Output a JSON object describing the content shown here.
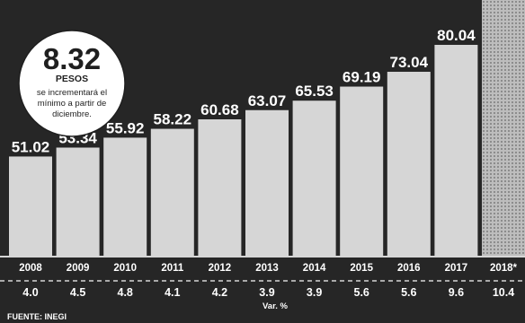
{
  "chart_data": {
    "type": "bar",
    "categories": [
      "2008",
      "2009",
      "2010",
      "2011",
      "2012",
      "2013",
      "2014",
      "2015",
      "2016",
      "2017",
      "2018*"
    ],
    "values": [
      51.02,
      53.34,
      55.92,
      58.22,
      60.68,
      63.07,
      65.53,
      69.19,
      73.04,
      80.04,
      null
    ],
    "value_labels": [
      "51.02",
      "53.34",
      "55.92",
      "58.22",
      "60.68",
      "63.07",
      "65.53",
      "69.19",
      "73.04",
      "80.04",
      ""
    ],
    "variation": [
      "4.0",
      "4.5",
      "4.8",
      "4.1",
      "4.2",
      "3.9",
      "3.9",
      "5.6",
      "5.6",
      "9.6",
      "10.4"
    ],
    "variation_label": "Var. %",
    "highlight_category": "2018*",
    "ylim": [
      0,
      90
    ],
    "grid": false,
    "colors": {
      "background": "#262626",
      "bar": "#d6d6d6",
      "highlight": "#bdbdbd",
      "text": "#ffffff"
    }
  },
  "callout": {
    "value": "8.32",
    "unit": "PESOS",
    "lines": [
      "se incrementará el",
      "mínimo a partir de",
      "diciembre."
    ]
  },
  "source": "FUENTE: INEGI"
}
